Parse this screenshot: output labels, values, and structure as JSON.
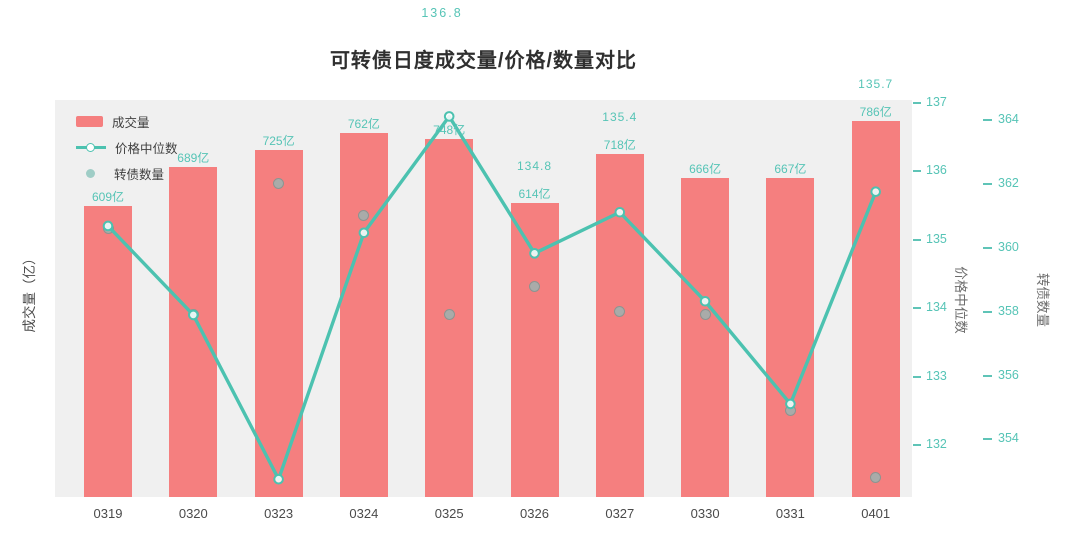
{
  "title": "可转债日度成交量/价格/数量对比",
  "legend": [
    {
      "label": "成交量",
      "type": "bar",
      "color": "#f57f7f"
    },
    {
      "label": "价格中位数",
      "type": "line",
      "color": "#4cc2b0"
    },
    {
      "label": "转债数量",
      "type": "scatter",
      "color": "#9fcdc6"
    }
  ],
  "axes": {
    "left_label": "成交量（亿）",
    "right_price_label": "价格中位数",
    "right_count_label": "转债数量",
    "price_ticks": [
      137,
      136,
      135,
      134,
      133,
      132
    ],
    "count_ticks": [
      364,
      362,
      360,
      358,
      356,
      354
    ]
  },
  "colors": {
    "bar": "#f57f7f",
    "line": "#4cc2b0",
    "value_label": "#56c4b6",
    "scatter_fill": "#a5aeac",
    "scatter_edge": "#879692",
    "tick": "#5fc4b7",
    "plot_bg": "#f0f0f0"
  },
  "chart_data": {
    "type": "combo",
    "categories": [
      "0319",
      "0320",
      "0323",
      "0324",
      "0325",
      "0326",
      "0327",
      "0330",
      "0331",
      "0401"
    ],
    "series": [
      {
        "name": "成交量",
        "type": "bar",
        "unit": "亿",
        "axis": "left",
        "ylim": [
          0,
          830
        ],
        "values": [
          609,
          689,
          725,
          762,
          748,
          614,
          718,
          666,
          667,
          786
        ]
      },
      {
        "name": "价格中位数",
        "type": "line",
        "axis": "right-price",
        "ylim": [
          131.24,
          137.04
        ],
        "values": [
          135.2,
          133.9,
          131.5,
          135.1,
          136.8,
          134.8,
          135.4,
          134.1,
          132.6,
          135.7
        ],
        "visible_labels": {
          "5": "134.8",
          "6": "135.4",
          "9": "135.7"
        }
      },
      {
        "name": "转债数量",
        "type": "scatter",
        "axis": "right-count",
        "ylim": [
          352.2,
          364.62
        ],
        "values": [
          360.6,
          357.9,
          362.0,
          361.0,
          357.9,
          358.8,
          358.0,
          357.9,
          354.9,
          352.8
        ]
      }
    ],
    "annotations": [
      {
        "series": "价格中位数",
        "category": "0325",
        "text": "136.8",
        "position": "top-center"
      }
    ],
    "legend_position": "top-left",
    "grid": false
  }
}
